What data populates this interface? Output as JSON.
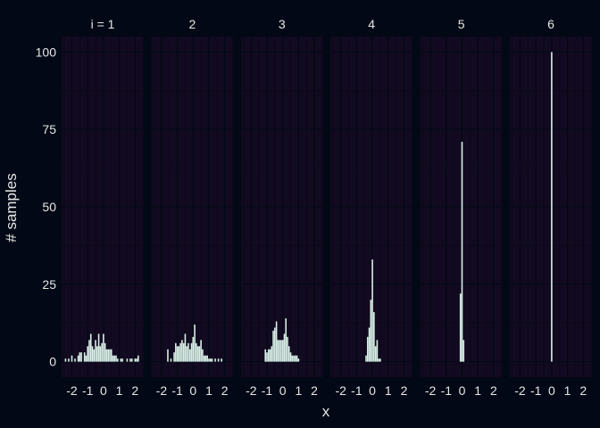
{
  "chart_data": {
    "type": "bar",
    "facet_variable": "i",
    "facets": [
      {
        "label": "i = 1",
        "x": [
          -2.4,
          -2.2,
          -2.0,
          -1.8,
          -1.6,
          -1.5,
          -1.4,
          -1.2,
          -1.1,
          -1.0,
          -0.9,
          -0.8,
          -0.7,
          -0.6,
          -0.5,
          -0.4,
          -0.3,
          -0.2,
          -0.1,
          0.0,
          0.1,
          0.2,
          0.3,
          0.4,
          0.5,
          0.6,
          0.7,
          0.8,
          0.9,
          1.1,
          1.2,
          1.5,
          1.7,
          1.8,
          2.0,
          2.1,
          2.2
        ],
        "y": [
          1,
          1,
          2,
          1,
          2,
          3,
          3,
          3,
          2,
          5,
          7,
          9,
          5,
          4,
          7,
          5,
          9,
          5,
          6,
          9,
          6,
          4,
          4,
          4,
          4,
          2,
          2,
          2,
          1,
          1,
          1,
          1,
          1,
          1,
          1,
          1,
          2
        ]
      },
      {
        "label": "2",
        "x": [
          -1.6,
          -1.4,
          -1.2,
          -1.1,
          -1.0,
          -0.9,
          -0.8,
          -0.7,
          -0.6,
          -0.5,
          -0.4,
          -0.3,
          -0.2,
          -0.1,
          0.0,
          0.1,
          0.2,
          0.3,
          0.4,
          0.5,
          0.6,
          0.7,
          0.8,
          0.9,
          1.0,
          1.1,
          1.2,
          1.4,
          1.6,
          1.8
        ],
        "y": [
          4,
          1,
          3,
          6,
          5,
          5,
          6,
          7,
          6,
          9,
          5,
          6,
          4,
          6,
          8,
          12,
          6,
          5,
          5,
          7,
          4,
          2,
          2,
          2,
          1,
          1,
          1,
          1,
          1,
          1
        ]
      },
      {
        "label": "3",
        "x": [
          -1.1,
          -1.0,
          -0.9,
          -0.8,
          -0.7,
          -0.6,
          -0.5,
          -0.4,
          -0.3,
          -0.2,
          -0.1,
          0.0,
          0.1,
          0.2,
          0.3,
          0.4,
          0.5,
          0.6,
          0.7,
          0.8,
          0.9,
          1.0
        ],
        "y": [
          4,
          3,
          4,
          4,
          5,
          10,
          11,
          13,
          7,
          7,
          7,
          7,
          9,
          14,
          8,
          5,
          3,
          2,
          2,
          2,
          2,
          1
        ]
      },
      {
        "label": "4",
        "x": [
          -0.4,
          -0.3,
          -0.2,
          -0.1,
          0.0,
          0.1,
          0.2,
          0.3,
          0.4,
          0.5
        ],
        "y": [
          2,
          8,
          11,
          20,
          33,
          16,
          5,
          7,
          1,
          1
        ]
      },
      {
        "label": "5",
        "x": [
          -0.1,
          0.0,
          0.1
        ],
        "y": [
          22,
          71,
          7
        ]
      },
      {
        "label": "6",
        "x": [
          0.0
        ],
        "y": [
          100
        ]
      }
    ],
    "xlabel": "x",
    "ylabel": "# samples",
    "xlim": [
      -2.65,
      2.55
    ],
    "ylim": [
      -5,
      105
    ],
    "xticks": [
      -2,
      -1,
      0,
      1,
      2
    ],
    "xtick_labels": [
      "-2",
      "-1",
      "0",
      "1",
      "2"
    ],
    "yticks": [
      0,
      25,
      50,
      75,
      100
    ],
    "grid": true,
    "legend": "none",
    "colors": {
      "background": "#020815",
      "panel": "#120a20",
      "bar": "#d8efe6",
      "text": "#e6e6e6"
    }
  }
}
